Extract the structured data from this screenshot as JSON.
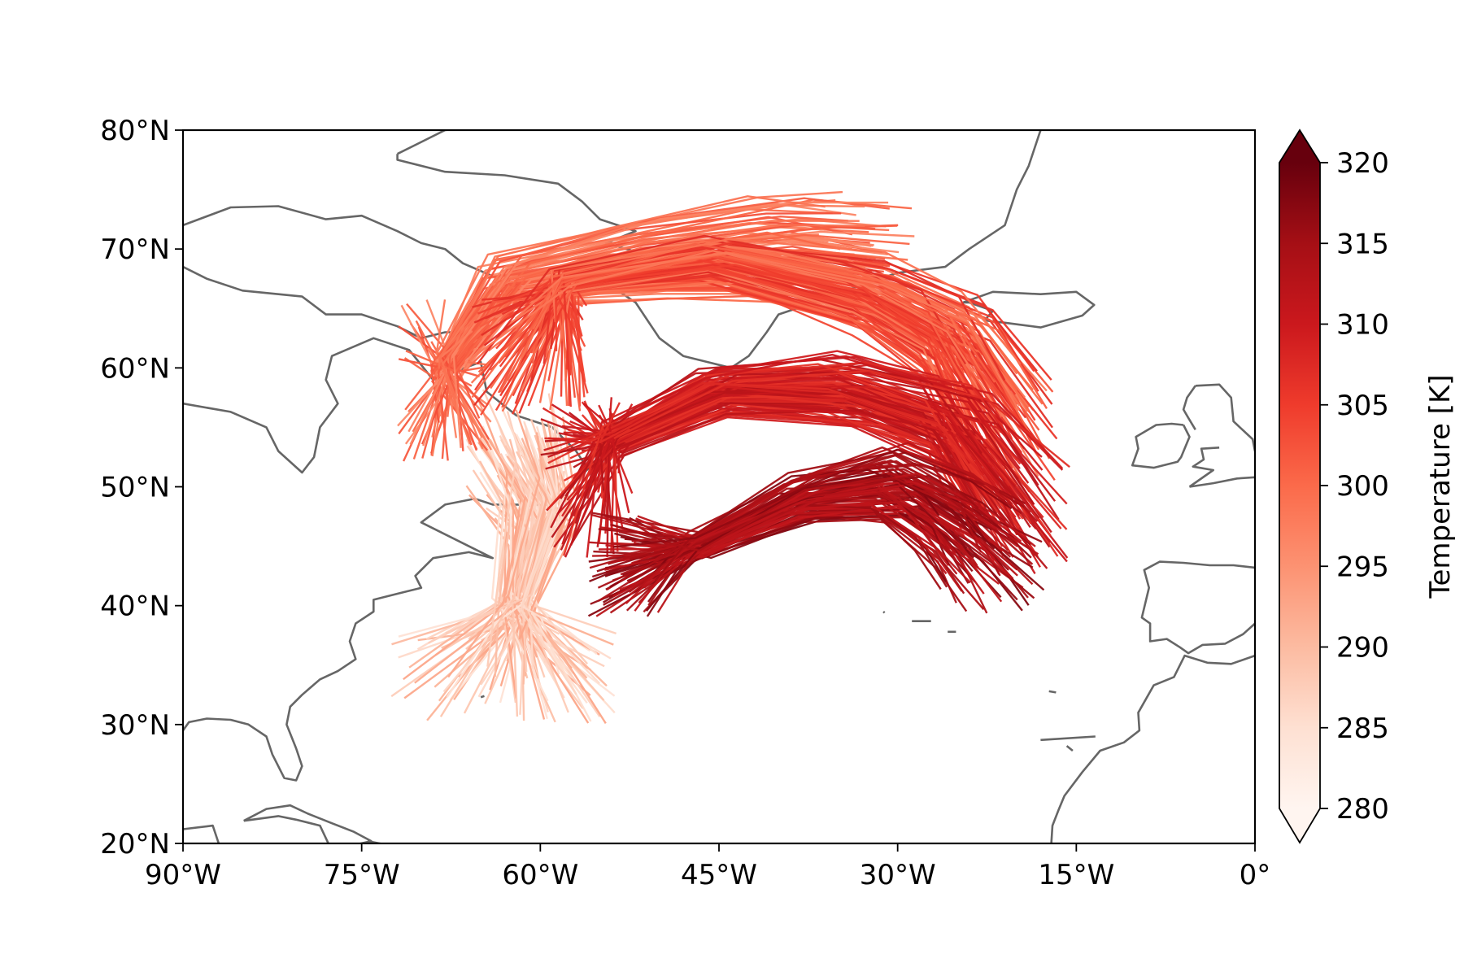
{
  "map": {
    "projection": "PlateCarree",
    "extent": {
      "lon": [
        -90,
        0
      ],
      "lat": [
        20,
        80
      ]
    },
    "coastline_color": "#666666",
    "x_ticks": [
      {
        "value": -90,
        "label": "90°W"
      },
      {
        "value": -75,
        "label": "75°W"
      },
      {
        "value": -60,
        "label": "60°W"
      },
      {
        "value": -45,
        "label": "45°W"
      },
      {
        "value": -30,
        "label": "30°W"
      },
      {
        "value": -15,
        "label": "15°W"
      },
      {
        "value": 0,
        "label": "0°"
      }
    ],
    "y_ticks": [
      {
        "value": 20,
        "label": "20°N"
      },
      {
        "value": 30,
        "label": "30°N"
      },
      {
        "value": 40,
        "label": "40°N"
      },
      {
        "value": 50,
        "label": "50°N"
      },
      {
        "value": 60,
        "label": "60°N"
      },
      {
        "value": 70,
        "label": "70°N"
      },
      {
        "value": 80,
        "label": "80°N"
      }
    ],
    "coastlines": [
      [
        [
          -90,
          57
        ],
        [
          -86,
          56.3
        ],
        [
          -83,
          55
        ],
        [
          -82,
          53
        ],
        [
          -80,
          51.2
        ],
        [
          -79,
          52.5
        ],
        [
          -78.5,
          55
        ],
        [
          -77,
          57
        ],
        [
          -78,
          59
        ],
        [
          -77.5,
          61
        ],
        [
          -74,
          62.5
        ],
        [
          -71,
          61.5
        ],
        [
          -69,
          59
        ],
        [
          -65,
          60.5
        ],
        [
          -64.5,
          58
        ],
        [
          -62,
          56
        ],
        [
          -59,
          55
        ],
        [
          -57,
          53
        ],
        [
          -56,
          51.5
        ],
        [
          -59,
          48.5
        ],
        [
          -64,
          48.5
        ],
        [
          -65.5,
          49
        ],
        [
          -68,
          48.5
        ],
        [
          -70,
          47
        ],
        [
          -66,
          45
        ],
        [
          -64,
          44
        ],
        [
          -66,
          44.5
        ],
        [
          -69,
          44
        ],
        [
          -70.5,
          42.5
        ],
        [
          -70,
          41.5
        ],
        [
          -72,
          41
        ],
        [
          -74,
          40.5
        ],
        [
          -74,
          39.5
        ],
        [
          -75.5,
          38.5
        ],
        [
          -76,
          37
        ],
        [
          -75.5,
          35.5
        ],
        [
          -77,
          34.5
        ],
        [
          -78.5,
          33.8
        ],
        [
          -80,
          32.5
        ],
        [
          -81,
          31.5
        ],
        [
          -81.3,
          30
        ],
        [
          -80.5,
          28
        ],
        [
          -80,
          26.5
        ],
        [
          -80.5,
          25.3
        ],
        [
          -81.5,
          25.5
        ],
        [
          -82.5,
          27.5
        ],
        [
          -83,
          29
        ],
        [
          -84.5,
          30
        ],
        [
          -86,
          30.4
        ],
        [
          -88,
          30.5
        ],
        [
          -89.5,
          30.2
        ],
        [
          -90,
          29.5
        ]
      ],
      [
        [
          -90,
          72
        ],
        [
          -86,
          73.5
        ],
        [
          -82,
          73.6
        ],
        [
          -78,
          72.5
        ],
        [
          -75,
          72.8
        ],
        [
          -72,
          71.5
        ],
        [
          -70,
          70.5
        ],
        [
          -68,
          70
        ],
        [
          -66.5,
          68.8
        ],
        [
          -63.5,
          67.5
        ],
        [
          -62,
          66.5
        ],
        [
          -63,
          65.5
        ],
        [
          -65,
          65
        ],
        [
          -66,
          64
        ],
        [
          -64.5,
          63
        ],
        [
          -68,
          63
        ],
        [
          -70,
          62.5
        ],
        [
          -72,
          63.5
        ],
        [
          -75,
          64.5
        ],
        [
          -78,
          64.5
        ],
        [
          -80,
          66
        ],
        [
          -85,
          66.5
        ],
        [
          -88,
          67.5
        ],
        [
          -90,
          68.5
        ]
      ],
      [
        [
          -72,
          78
        ],
        [
          -68,
          80
        ],
        [
          -50,
          82
        ],
        [
          -30,
          83
        ],
        [
          -21,
          82
        ],
        [
          -18,
          80
        ],
        [
          -19,
          77
        ],
        [
          -20,
          75
        ],
        [
          -21,
          72
        ],
        [
          -24,
          70
        ],
        [
          -26,
          68.5
        ],
        [
          -30,
          68
        ],
        [
          -33,
          67
        ],
        [
          -37,
          65.5
        ],
        [
          -40,
          64.5
        ],
        [
          -41,
          63
        ],
        [
          -42.5,
          61
        ],
        [
          -44,
          60
        ],
        [
          -46,
          60.5
        ],
        [
          -48,
          61
        ],
        [
          -50,
          62.5
        ],
        [
          -51,
          64
        ],
        [
          -52,
          65.5
        ],
        [
          -53.5,
          66.5
        ],
        [
          -53,
          68
        ],
        [
          -51,
          69.5
        ],
        [
          -54.5,
          70.5
        ],
        [
          -52,
          71.5
        ],
        [
          -55,
          72.5
        ],
        [
          -56.5,
          74
        ],
        [
          -58.5,
          75.5
        ],
        [
          -63,
          76.2
        ],
        [
          -68,
          76.5
        ],
        [
          -72,
          77.5
        ],
        [
          -72,
          78
        ]
      ],
      [
        [
          -24.5,
          65.5
        ],
        [
          -22,
          66.4
        ],
        [
          -18,
          66.2
        ],
        [
          -15,
          66.4
        ],
        [
          -13.5,
          65.3
        ],
        [
          -14.5,
          64.4
        ],
        [
          -18,
          63.4
        ],
        [
          -21,
          63.8
        ],
        [
          -22.7,
          64
        ],
        [
          -22,
          64.8
        ],
        [
          -24,
          65.5
        ],
        [
          -24.5,
          65.5
        ]
      ],
      [
        [
          -5,
          58.5
        ],
        [
          -3,
          58.6
        ],
        [
          -2,
          57.5
        ],
        [
          -1.8,
          55.5
        ],
        [
          -0.2,
          54
        ],
        [
          0,
          53
        ]
      ],
      [
        [
          -5.5,
          50
        ],
        [
          -3.5,
          50.3
        ],
        [
          -1.5,
          50.7
        ],
        [
          0,
          50.8
        ]
      ],
      [
        [
          -3,
          53.3
        ],
        [
          -4.5,
          53.2
        ],
        [
          -4.3,
          52.3
        ],
        [
          -5.2,
          51.7
        ],
        [
          -3.5,
          51.4
        ],
        [
          -5.5,
          50
        ]
      ],
      [
        [
          -5,
          54.8
        ],
        [
          -5.6,
          55.8
        ],
        [
          -6,
          56.5
        ],
        [
          -5.7,
          57.5
        ],
        [
          -5,
          58.5
        ]
      ],
      [
        [
          -6,
          55.2
        ],
        [
          -5.5,
          54.2
        ],
        [
          -6.2,
          52.5
        ],
        [
          -6.5,
          52.1
        ],
        [
          -8.5,
          51.6
        ],
        [
          -10.3,
          51.8
        ],
        [
          -9.8,
          53.2
        ],
        [
          -10,
          54.2
        ],
        [
          -8.3,
          55.2
        ],
        [
          -7,
          55.3
        ],
        [
          -6,
          55.2
        ]
      ],
      [
        [
          0,
          43.2
        ],
        [
          -1.8,
          43.4
        ],
        [
          -3.8,
          43.4
        ],
        [
          -6,
          43.6
        ],
        [
          -8,
          43.7
        ],
        [
          -9.3,
          43
        ],
        [
          -8.9,
          41.5
        ],
        [
          -9.5,
          39
        ],
        [
          -8.8,
          38.5
        ],
        [
          -8.8,
          37
        ],
        [
          -7.4,
          37.2
        ],
        [
          -6.3,
          36.5
        ],
        [
          -5.6,
          36
        ],
        [
          -4.4,
          36.7
        ],
        [
          -2.5,
          36.8
        ],
        [
          -1,
          37.6
        ],
        [
          0,
          38.5
        ]
      ],
      [
        [
          0,
          35.8
        ],
        [
          -2,
          35.1
        ],
        [
          -4,
          35.2
        ],
        [
          -5.9,
          35.8
        ],
        [
          -6.8,
          34
        ],
        [
          -8.5,
          33.3
        ],
        [
          -9.8,
          31
        ],
        [
          -9.7,
          29.5
        ],
        [
          -11,
          28.5
        ],
        [
          -13,
          27.8
        ],
        [
          -14.5,
          26
        ],
        [
          -16,
          24
        ],
        [
          -16.5,
          22.8
        ],
        [
          -17,
          21.5
        ],
        [
          -17.1,
          20
        ]
      ],
      [
        [
          -90,
          21.2
        ],
        [
          -87.5,
          21.5
        ],
        [
          -87,
          20
        ]
      ],
      [
        [
          -84.9,
          21.9
        ],
        [
          -83,
          22.9
        ],
        [
          -81,
          23.2
        ],
        [
          -79.5,
          22.5
        ],
        [
          -77.5,
          21.7
        ],
        [
          -75.7,
          21
        ],
        [
          -74.2,
          20.2
        ],
        [
          -75.5,
          19.9
        ],
        [
          -77.7,
          19.8
        ],
        [
          -78.5,
          21.5
        ],
        [
          -80.5,
          22
        ],
        [
          -82,
          22.3
        ],
        [
          -84.9,
          21.9
        ]
      ],
      [
        [
          -74.5,
          20.2
        ],
        [
          -72.5,
          19.8
        ],
        [
          -70,
          19.7
        ],
        [
          -68.4,
          18.6
        ],
        [
          -70,
          18.2
        ],
        [
          -71.5,
          17.8
        ],
        [
          -73.5,
          18.3
        ],
        [
          -74.5,
          18.5
        ],
        [
          -72.8,
          19
        ],
        [
          -74.5,
          20.2
        ]
      ],
      [
        [
          -78.3,
          18.4
        ],
        [
          -76.8,
          18.5
        ],
        [
          -76.2,
          17.9
        ],
        [
          -77.8,
          17.9
        ],
        [
          -78.3,
          18.4
        ]
      ],
      [
        [
          -67.5,
          18.5
        ],
        [
          -65.6,
          18.4
        ],
        [
          -66,
          17.9
        ],
        [
          -67.2,
          17.9
        ],
        [
          -67.5,
          18.5
        ]
      ],
      [
        [
          -65,
          32.3
        ],
        [
          -64.7,
          32.4
        ]
      ],
      [
        [
          -28.8,
          38.7
        ],
        [
          -27.2,
          38.7
        ]
      ],
      [
        [
          -25.8,
          37.8
        ],
        [
          -25.1,
          37.8
        ]
      ],
      [
        [
          -31.2,
          39.5
        ],
        [
          -31.1,
          39.4
        ]
      ],
      [
        [
          -17.3,
          32.8
        ],
        [
          -16.7,
          32.7
        ]
      ],
      [
        [
          -18,
          28.7
        ],
        [
          -13.4,
          29
        ]
      ],
      [
        [
          -15.8,
          28.2
        ],
        [
          -15.3,
          27.8
        ]
      ]
    ]
  },
  "chart_data": {
    "type": "trajectories",
    "colorbar": {
      "label": "Temperature [K]",
      "min": 280,
      "max": 320,
      "extend": "both",
      "colormap": "Reds",
      "colormap_stops": [
        "#fff5f0",
        "#fee0d2",
        "#fcbba1",
        "#fc9272",
        "#fb6a4a",
        "#ef3b2c",
        "#cb181d",
        "#a50f15",
        "#67000d"
      ],
      "ticks": [
        {
          "value": 280,
          "label": "280"
        },
        {
          "value": 285,
          "label": "285"
        },
        {
          "value": 290,
          "label": "290"
        },
        {
          "value": 295,
          "label": "295"
        },
        {
          "value": 300,
          "label": "300"
        },
        {
          "value": 305,
          "label": "305"
        },
        {
          "value": 310,
          "label": "310"
        },
        {
          "value": 315,
          "label": "315"
        },
        {
          "value": 320,
          "label": "320"
        }
      ]
    },
    "trajectory_bundles": [
      {
        "group": "southern-cool",
        "count": 110,
        "temperature": [
          284,
          293
        ],
        "start": {
          "lon": [
            -73,
            -53
          ],
          "lat": [
            30,
            38
          ]
        },
        "path": [
          [
            -62,
            40
          ],
          [
            -60,
            48
          ],
          [
            -62,
            53
          ]
        ]
      },
      {
        "group": "western-hook",
        "count": 90,
        "temperature": [
          296,
          303
        ],
        "start": {
          "lon": [
            -72,
            -64
          ],
          "lat": [
            52,
            66
          ]
        },
        "path": [
          [
            -68,
            60
          ],
          [
            -63,
            67
          ],
          [
            -52,
            69
          ],
          [
            -40,
            70
          ],
          [
            -33,
            69
          ]
        ]
      },
      {
        "group": "northern-arc",
        "count": 120,
        "temperature": [
          298,
          307
        ],
        "start": {
          "lon": [
            -66,
            -56
          ],
          "lat": [
            56,
            66
          ]
        },
        "path": [
          [
            -58,
            67
          ],
          [
            -45,
            69
          ],
          [
            -32,
            66
          ],
          [
            -25,
            62
          ],
          [
            -21,
            55
          ]
        ]
      },
      {
        "group": "middle-arc",
        "count": 110,
        "temperature": [
          306,
          313
        ],
        "start": {
          "lon": [
            -60,
            -52
          ],
          "lat": [
            44,
            58
          ]
        },
        "path": [
          [
            -54,
            54
          ],
          [
            -45,
            58
          ],
          [
            -34,
            58
          ],
          [
            -25,
            55
          ],
          [
            -20,
            48
          ]
        ]
      },
      {
        "group": "southern-warm-arc",
        "count": 90,
        "temperature": [
          311,
          318
        ],
        "start": {
          "lon": [
            -56,
            -50
          ],
          "lat": [
            39,
            48
          ]
        },
        "path": [
          [
            -47,
            45
          ],
          [
            -38,
            49
          ],
          [
            -30,
            50
          ],
          [
            -25,
            47
          ],
          [
            -22,
            44
          ]
        ]
      }
    ]
  }
}
